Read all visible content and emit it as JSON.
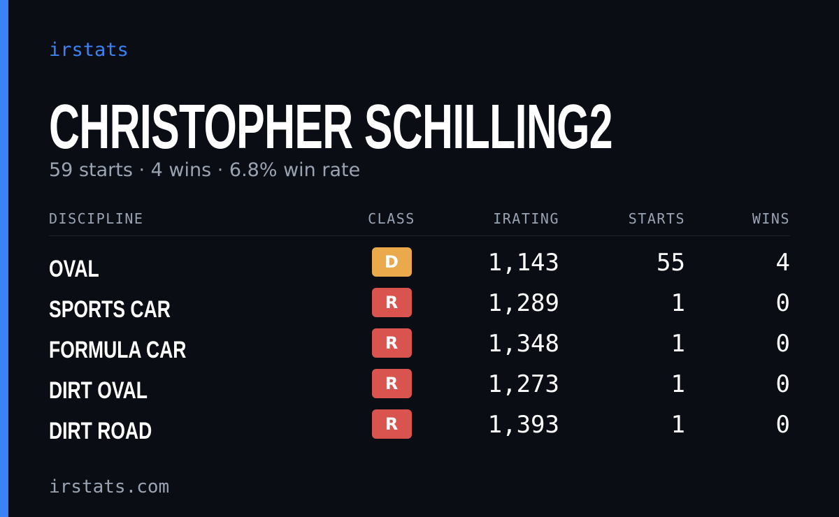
{
  "brand": "irstats",
  "header": {
    "title": "CHRISTOPHER SCHILLING2",
    "subtitle": "59 starts · 4 wins · 6.8% win rate"
  },
  "table": {
    "columns": [
      "DISCIPLINE",
      "CLASS",
      "IRATING",
      "STARTS",
      "WINS"
    ],
    "rows": [
      [
        "OVAL",
        "D",
        "1,143",
        "55",
        "4"
      ],
      [
        "SPORTS CAR",
        "R",
        "1,289",
        "1",
        "0"
      ],
      [
        "FORMULA CAR",
        "R",
        "1,348",
        "1",
        "0"
      ],
      [
        "DIRT OVAL",
        "R",
        "1,273",
        "1",
        "0"
      ],
      [
        "DIRT ROAD",
        "R",
        "1,393",
        "1",
        "0"
      ]
    ]
  },
  "footer": "irstats.com"
}
